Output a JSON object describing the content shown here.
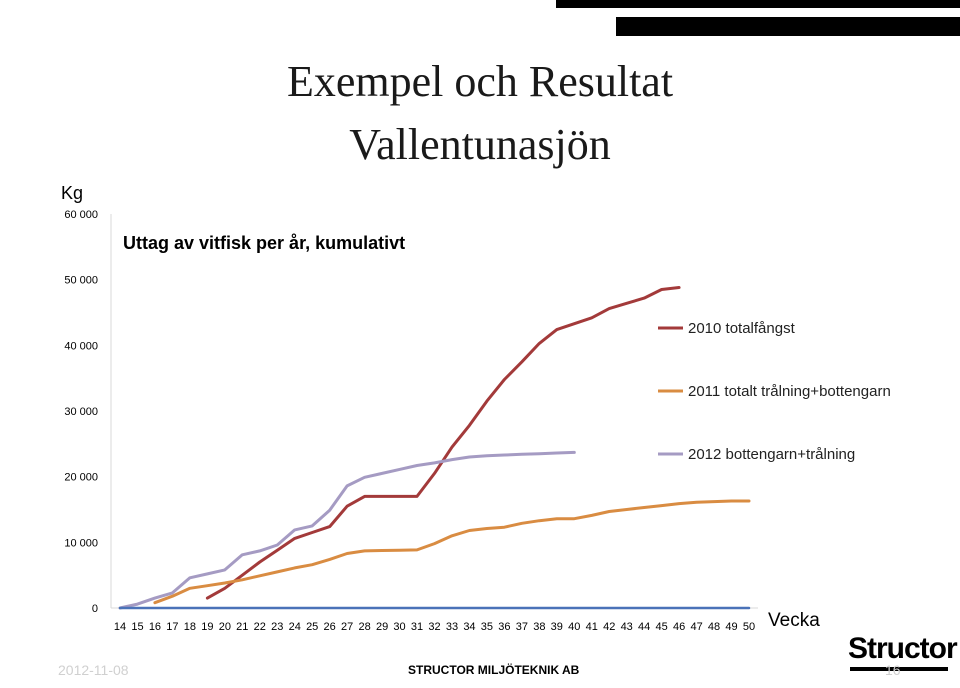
{
  "slide": {
    "title_line1": "Exempel och Resultat",
    "title_line2": "Vallentunasjön",
    "date": "2012-11-08",
    "company": "STRUCTOR MILJÖTEKNIK AB",
    "page_number": "16",
    "logo_text": "Structor"
  },
  "chart_data": {
    "type": "line",
    "title": "Uttag av vitfisk per år, kumulativt",
    "ylabel": "Kg",
    "xlabel": "Vecka",
    "ylim": [
      0,
      60000
    ],
    "yticks": [
      0,
      10000,
      20000,
      30000,
      40000,
      50000,
      60000
    ],
    "ytick_labels": [
      "0",
      "10 000",
      "20 000",
      "30 000",
      "40 000",
      "50 000",
      "60 000"
    ],
    "x": [
      14,
      15,
      16,
      17,
      18,
      19,
      20,
      21,
      22,
      23,
      24,
      25,
      26,
      27,
      28,
      29,
      30,
      31,
      32,
      33,
      34,
      35,
      36,
      37,
      38,
      39,
      40,
      41,
      42,
      43,
      44,
      45,
      46,
      47,
      48,
      49,
      50
    ],
    "grid": false,
    "legend_position": "right",
    "series": [
      {
        "name": "2010 totalfångst",
        "color": "#a33a3a",
        "values": [
          null,
          null,
          null,
          null,
          null,
          1500,
          3000,
          5000,
          7000,
          8800,
          10600,
          11500,
          12400,
          15500,
          17000,
          17000,
          17000,
          17000,
          20500,
          24500,
          27800,
          31500,
          34800,
          37500,
          40300,
          42400,
          43300,
          44200,
          45600,
          46400,
          47200,
          48500,
          48800,
          null,
          null,
          null,
          null
        ]
      },
      {
        "name": "2011 totalt trålning+bottengarn",
        "color": "#d98c42",
        "values": [
          null,
          null,
          800,
          1800,
          3000,
          3400,
          3800,
          4300,
          4900,
          5500,
          6100,
          6600,
          7400,
          8300,
          8700,
          8750,
          8800,
          8850,
          9800,
          11000,
          11800,
          12100,
          12300,
          12900,
          13300,
          13600,
          13600,
          14100,
          14700,
          15000,
          15300,
          15600,
          15900,
          16100,
          16200,
          16300,
          16300
        ]
      },
      {
        "name": "2012 bottengarn+trålning",
        "color": "#a59bc3",
        "values": [
          0,
          600,
          1500,
          2300,
          4600,
          5200,
          5800,
          8100,
          8700,
          9600,
          11900,
          12500,
          14900,
          18600,
          19900,
          20500,
          21100,
          21700,
          22100,
          22600,
          23000,
          23200,
          23300,
          23400,
          23500,
          23600,
          23700,
          null,
          null,
          null,
          null,
          null,
          null,
          null,
          null,
          null,
          null
        ]
      },
      {
        "name": "",
        "color": "#4a72b8",
        "values": [
          0,
          0,
          0,
          0,
          0,
          0,
          0,
          0,
          0,
          0,
          0,
          0,
          0,
          0,
          0,
          0,
          0,
          0,
          0,
          0,
          0,
          0,
          0,
          0,
          0,
          0,
          0,
          0,
          0,
          0,
          0,
          0,
          0,
          0,
          0,
          0,
          0
        ]
      }
    ]
  }
}
